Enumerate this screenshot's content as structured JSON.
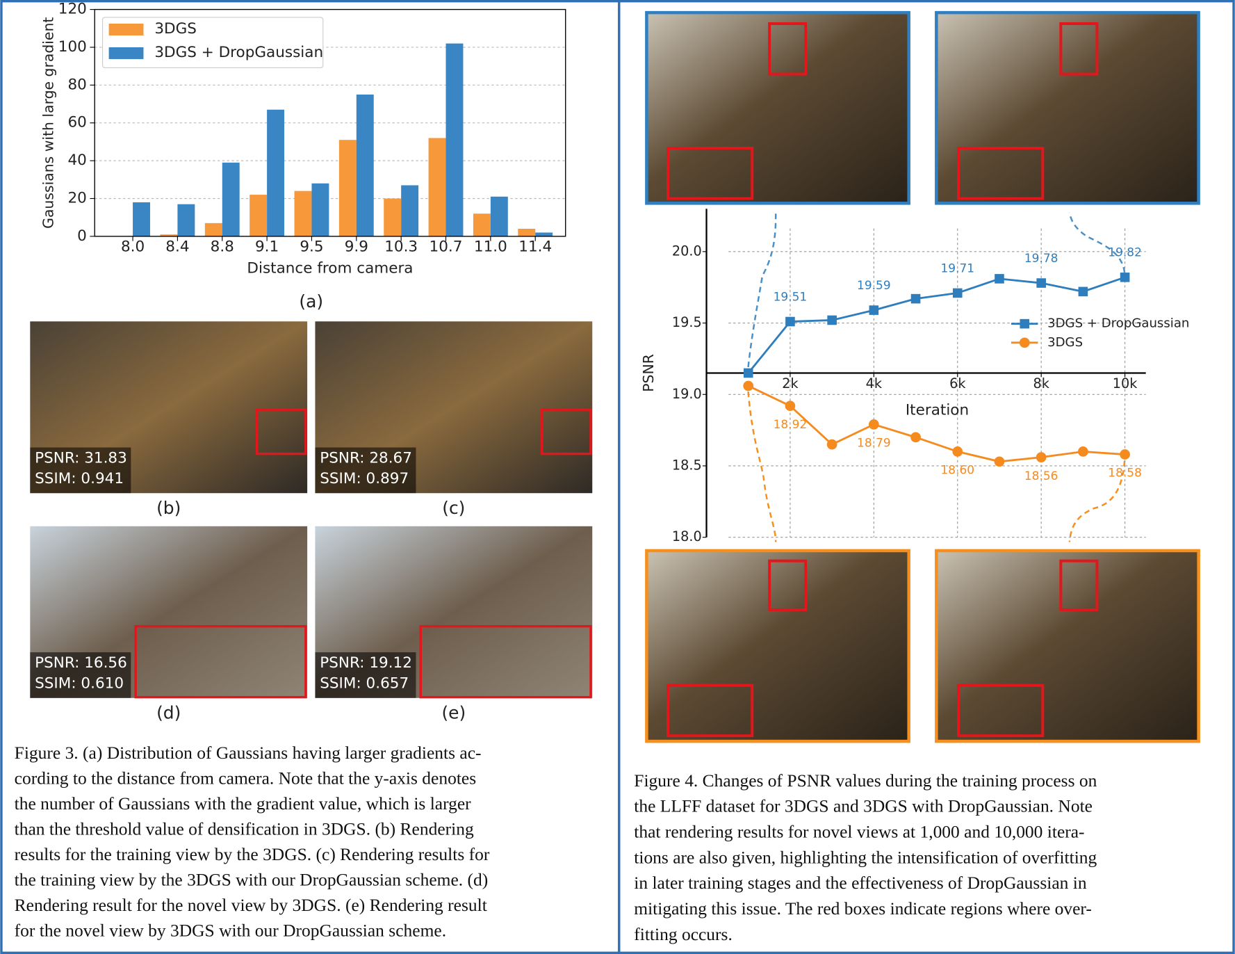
{
  "chart_data": [
    {
      "type": "bar",
      "categories": [
        "8.0",
        "8.4",
        "8.8",
        "9.1",
        "9.5",
        "9.9",
        "10.3",
        "10.7",
        "11.0",
        "11.4"
      ],
      "series": [
        {
          "name": "3DGS",
          "color": "#f7983a",
          "values": [
            0,
            1,
            7,
            22,
            24,
            51,
            20,
            52,
            12,
            4
          ]
        },
        {
          "name": "3DGS + DropGaussian",
          "color": "#3a86c4",
          "values": [
            18,
            17,
            39,
            67,
            28,
            75,
            27,
            102,
            21,
            2
          ]
        }
      ],
      "ylabel": "Gaussians with large gradient",
      "xlabel": "Distance from camera",
      "ylim": [
        0,
        120
      ],
      "yticks": [
        0,
        20,
        40,
        60,
        80,
        100,
        120
      ],
      "grid": true,
      "legend": "upper left"
    },
    {
      "type": "line",
      "x": [
        1000,
        2000,
        3000,
        4000,
        5000,
        6000,
        7000,
        8000,
        9000,
        10000
      ],
      "series": [
        {
          "name": "3DGS + DropGaussian",
          "color": "#2e7dbd",
          "marker": "square",
          "values": [
            19.15,
            19.51,
            19.52,
            19.59,
            19.67,
            19.71,
            19.81,
            19.78,
            19.72,
            19.82
          ],
          "value_labels": [
            null,
            "19.51",
            null,
            "19.59",
            null,
            "19.71",
            null,
            "19.78",
            null,
            "19.82"
          ]
        },
        {
          "name": "3DGS",
          "color": "#f58a1f",
          "marker": "circle",
          "values": [
            19.06,
            18.92,
            18.65,
            18.79,
            18.7,
            18.6,
            18.53,
            18.56,
            18.6,
            18.58
          ],
          "value_labels": [
            null,
            "18.92",
            null,
            "18.79",
            null,
            "18.60",
            null,
            "18.56",
            null,
            "18.58"
          ]
        }
      ],
      "ylabel": "PSNR",
      "xlabel": "Iteration",
      "xlim": [
        0,
        10500
      ],
      "ylim": [
        18.0,
        20.3
      ],
      "xticks": [
        {
          "value": 2000,
          "label": "2k"
        },
        {
          "value": 4000,
          "label": "4k"
        },
        {
          "value": 6000,
          "label": "6k"
        },
        {
          "value": 8000,
          "label": "8k"
        },
        {
          "value": 10000,
          "label": "10k"
        }
      ],
      "yticks": [
        {
          "value": 18.0,
          "label": "18.0"
        },
        {
          "value": 18.5,
          "label": "18.5"
        },
        {
          "value": 19.0,
          "label": "19.0"
        },
        {
          "value": 19.5,
          "label": "19.5"
        },
        {
          "value": 20.0,
          "label": "20.0"
        }
      ],
      "grid": true,
      "legend": "center right"
    }
  ],
  "figure3": {
    "panel_labels": [
      "(a)",
      "(b)",
      "(c)",
      "(d)",
      "(e)"
    ],
    "panels": [
      {
        "psnr": "PSNR: 31.83",
        "ssim": "SSIM: 0.941"
      },
      {
        "psnr": "PSNR: 28.67",
        "ssim": "SSIM: 0.897"
      },
      {
        "psnr": "PSNR: 16.56",
        "ssim": "SSIM: 0.610"
      },
      {
        "psnr": "PSNR: 19.12",
        "ssim": "SSIM: 0.657"
      }
    ],
    "caption": [
      "Figure 3.  (a) Distribution of Gaussians having larger gradients ac-",
      "cording to the distance from camera.  Note that the y-axis denotes",
      "the number of Gaussians with the gradient value, which is larger",
      "than the threshold value of densification in 3DGS. (b) Rendering",
      "results for the training view by the 3DGS. (c) Rendering results for",
      "the training view by the 3DGS with our DropGaussian scheme.  (d)",
      "Rendering result for the novel view by 3DGS. (e) Rendering result",
      "for the novel view by 3DGS with our DropGaussian scheme."
    ]
  },
  "figure4": {
    "caption": [
      "Figure 4.  Changes of PSNR values during the training process on",
      "the LLFF dataset for 3DGS and 3DGS with DropGaussian. Note",
      "that rendering results for novel views at 1,000 and 10,000 itera-",
      "tions are also given, highlighting the intensification of overfitting",
      "in later training stages and the effectiveness of DropGaussian in",
      "mitigating this issue.  The red boxes indicate regions where over-",
      "fitting occurs."
    ]
  }
}
